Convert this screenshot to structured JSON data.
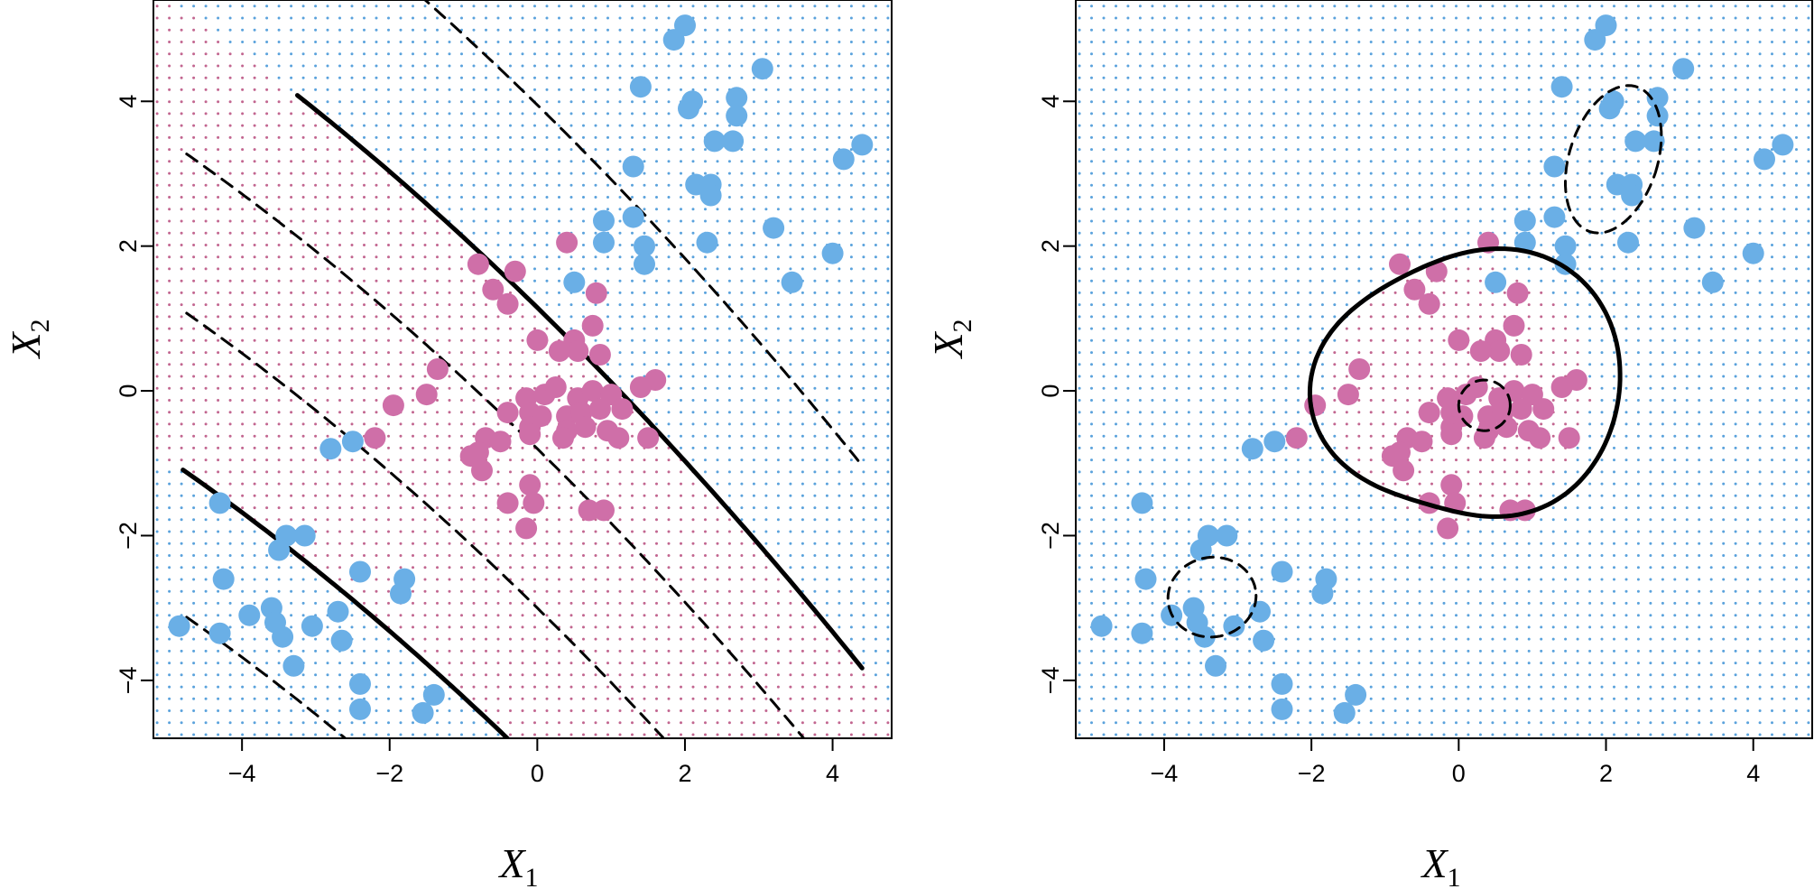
{
  "chart_data": [
    {
      "type": "scatter",
      "title": "",
      "xlabel_main": "X",
      "xlabel_sub": "1",
      "ylabel_main": "X",
      "ylabel_sub": "2",
      "xlim": [
        -5.2,
        4.8
      ],
      "ylim": [
        -4.8,
        5.4
      ],
      "xticks": [
        -4,
        -2,
        0,
        2,
        4
      ],
      "yticks": [
        -4,
        -2,
        0,
        2,
        4
      ],
      "xtick_labels": [
        "−4",
        "−2",
        "0",
        "2",
        "4"
      ],
      "ytick_labels": [
        "−4",
        "−2",
        "0",
        "2",
        "4"
      ],
      "grid": "dotted background grid colored by predicted class",
      "boundary": "polynomial"
    },
    {
      "type": "scatter",
      "title": "",
      "xlabel_main": "X",
      "xlabel_sub": "1",
      "ylabel_main": "X",
      "ylabel_sub": "2",
      "xlim": [
        -5.2,
        4.8
      ],
      "ylim": [
        -4.8,
        5.4
      ],
      "xticks": [
        -4,
        -2,
        0,
        2,
        4
      ],
      "yticks": [
        -4,
        -2,
        0,
        2,
        4
      ],
      "xtick_labels": [
        "−4",
        "−2",
        "0",
        "2",
        "4"
      ],
      "ytick_labels": [
        "−4",
        "−2",
        "0",
        "2",
        "4"
      ],
      "grid": "dotted background grid colored by predicted class",
      "boundary": "radial"
    }
  ],
  "points": {
    "class_a": [
      [
        2.0,
        5.05
      ],
      [
        1.85,
        4.85
      ],
      [
        3.05,
        4.45
      ],
      [
        1.4,
        4.2
      ],
      [
        2.1,
        4.0
      ],
      [
        2.05,
        3.9
      ],
      [
        2.7,
        4.05
      ],
      [
        2.7,
        3.8
      ],
      [
        4.4,
        3.4
      ],
      [
        4.15,
        3.2
      ],
      [
        2.4,
        3.45
      ],
      [
        2.65,
        3.45
      ],
      [
        1.3,
        3.1
      ],
      [
        2.15,
        2.85
      ],
      [
        2.35,
        2.85
      ],
      [
        2.35,
        2.7
      ],
      [
        3.2,
        2.25
      ],
      [
        0.9,
        2.35
      ],
      [
        1.3,
        2.4
      ],
      [
        0.9,
        2.05
      ],
      [
        2.3,
        2.05
      ],
      [
        1.45,
        2.0
      ],
      [
        1.45,
        1.75
      ],
      [
        4.0,
        1.9
      ],
      [
        0.5,
        1.5
      ],
      [
        3.45,
        1.5
      ],
      [
        -2.8,
        -0.8
      ],
      [
        -2.5,
        -0.7
      ],
      [
        -4.3,
        -1.55
      ],
      [
        -3.4,
        -2.0
      ],
      [
        -3.5,
        -2.2
      ],
      [
        -3.15,
        -2.0
      ],
      [
        -4.25,
        -2.6
      ],
      [
        -2.4,
        -2.5
      ],
      [
        -1.8,
        -2.6
      ],
      [
        -1.85,
        -2.8
      ],
      [
        -4.85,
        -3.25
      ],
      [
        -4.3,
        -3.35
      ],
      [
        -3.9,
        -3.1
      ],
      [
        -3.6,
        -3.0
      ],
      [
        -3.55,
        -3.2
      ],
      [
        -3.45,
        -3.4
      ],
      [
        -3.05,
        -3.25
      ],
      [
        -2.7,
        -3.05
      ],
      [
        -2.65,
        -3.45
      ],
      [
        -3.3,
        -3.8
      ],
      [
        -2.4,
        -4.05
      ],
      [
        -1.4,
        -4.2
      ],
      [
        -2.4,
        -4.4
      ],
      [
        -1.55,
        -4.45
      ]
    ],
    "class_b": [
      [
        0.4,
        2.05
      ],
      [
        -0.8,
        1.75
      ],
      [
        -0.3,
        1.65
      ],
      [
        -0.6,
        1.4
      ],
      [
        0.8,
        1.35
      ],
      [
        -0.4,
        1.2
      ],
      [
        0.75,
        0.9
      ],
      [
        0.0,
        0.7
      ],
      [
        0.5,
        0.7
      ],
      [
        0.55,
        0.55
      ],
      [
        0.3,
        0.55
      ],
      [
        0.85,
        0.5
      ],
      [
        -1.35,
        0.3
      ],
      [
        1.6,
        0.15
      ],
      [
        -1.5,
        -0.05
      ],
      [
        -1.95,
        -0.2
      ],
      [
        -2.2,
        -0.65
      ],
      [
        -0.15,
        -0.1
      ],
      [
        0.1,
        -0.05
      ],
      [
        0.25,
        0.05
      ],
      [
        0.55,
        -0.1
      ],
      [
        0.75,
        0.0
      ],
      [
        1.0,
        -0.05
      ],
      [
        -0.4,
        -0.3
      ],
      [
        -0.1,
        -0.3
      ],
      [
        0.05,
        -0.35
      ],
      [
        0.4,
        -0.35
      ],
      [
        0.6,
        -0.3
      ],
      [
        0.85,
        -0.25
      ],
      [
        1.15,
        -0.25
      ],
      [
        1.4,
        0.05
      ],
      [
        -0.1,
        -0.5
      ],
      [
        0.4,
        -0.55
      ],
      [
        0.65,
        -0.5
      ],
      [
        0.95,
        -0.55
      ],
      [
        -0.7,
        -0.65
      ],
      [
        -0.5,
        -0.7
      ],
      [
        -0.1,
        -0.6
      ],
      [
        0.35,
        -0.65
      ],
      [
        1.1,
        -0.65
      ],
      [
        1.5,
        -0.65
      ],
      [
        -0.8,
        -0.85
      ],
      [
        -0.9,
        -0.9
      ],
      [
        -0.75,
        -1.1
      ],
      [
        -0.4,
        -1.55
      ],
      [
        -0.1,
        -1.3
      ],
      [
        -0.05,
        -1.55
      ],
      [
        0.7,
        -1.65
      ],
      [
        0.9,
        -1.65
      ],
      [
        -0.15,
        -1.9
      ]
    ]
  },
  "colors": {
    "class_a": "#6aafe6",
    "class_b": "#cf6fa8",
    "grid_a": "#5aa2dc",
    "grid_b": "#c26690",
    "boundary": "#000000",
    "background": "#ffffff"
  }
}
